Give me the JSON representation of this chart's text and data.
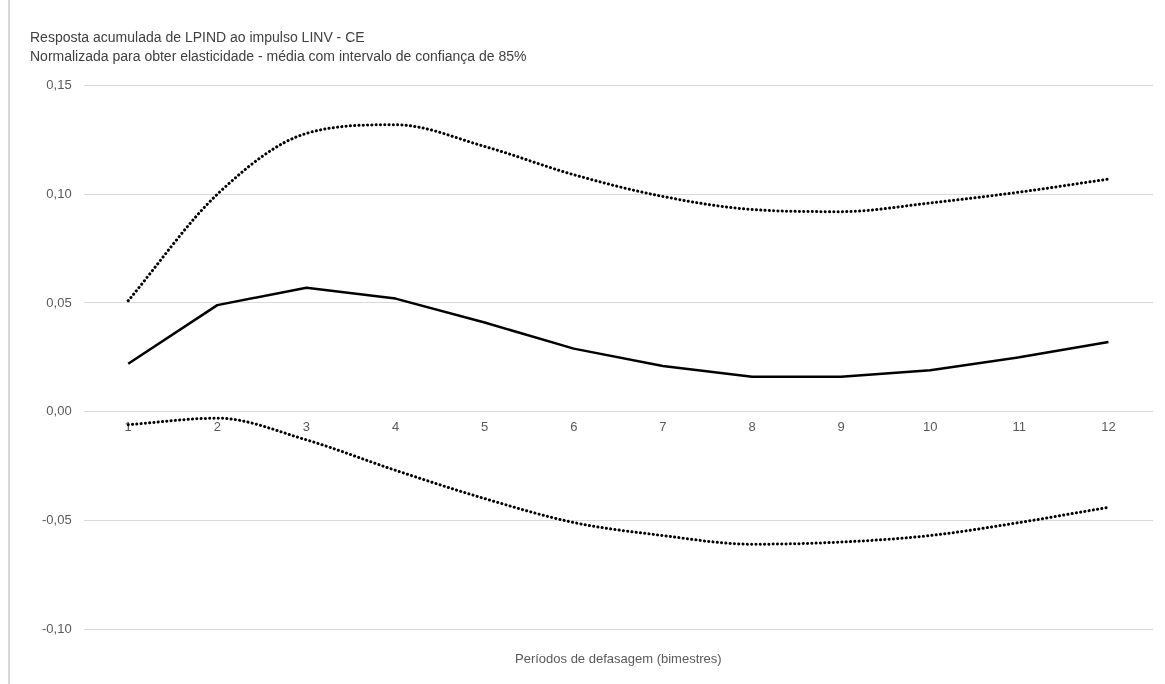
{
  "chart_data": {
    "type": "line",
    "title": "Resposta acumulada de LPIND ao impulso LINV - CE",
    "subtitle": "Normalizada para obter elasticidade - média com intervalo de confiança de 85%",
    "xlabel": "Períodos de defasagem (bimestres)",
    "categories": [
      "1",
      "2",
      "3",
      "4",
      "5",
      "6",
      "7",
      "8",
      "9",
      "10",
      "11",
      "12"
    ],
    "series": [
      {
        "color": "#000000",
        "line_style": "dotted",
        "values": [
          0.051,
          0.1,
          0.128,
          0.132,
          0.122,
          0.109,
          0.099,
          0.093,
          0.092,
          0.096,
          0.101,
          0.107
        ]
      },
      {
        "color": "#000000",
        "line_style": "solid",
        "values": [
          0.022,
          0.049,
          0.057,
          0.052,
          0.041,
          0.029,
          0.021,
          0.016,
          0.016,
          0.019,
          0.025,
          0.032
        ]
      },
      {
        "color": "#000000",
        "line_style": "dotted",
        "values": [
          -0.006,
          -0.003,
          -0.013,
          -0.027,
          -0.04,
          -0.051,
          -0.057,
          -0.061,
          -0.06,
          -0.057,
          -0.051,
          -0.044
        ]
      }
    ],
    "ylim": [
      -0.1,
      0.15
    ],
    "yticks": [
      {
        "value": -0.1,
        "label": "-0,10"
      },
      {
        "value": -0.05,
        "label": "-0,05"
      },
      {
        "value": 0,
        "label": "0,00"
      },
      {
        "value": 0.05,
        "label": "0,05"
      },
      {
        "value": 0.1,
        "label": "0,10"
      },
      {
        "value": 0.15,
        "label": "0,15"
      }
    ],
    "grid": "y",
    "legend": false,
    "marker": "none"
  }
}
